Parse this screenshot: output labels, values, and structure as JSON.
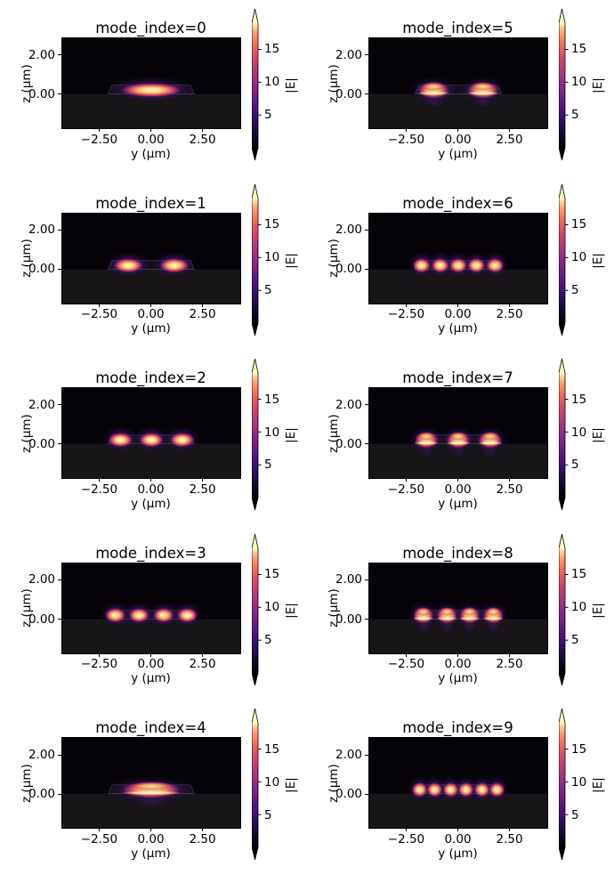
{
  "chart_data": {
    "type": "heatmap_grid",
    "description": "Waveguide optical mode profiles |E| on y-z cross sections, 5 rows x 2 columns, magma colormap",
    "grid_order_row_major": [
      0,
      5,
      1,
      6,
      2,
      7,
      3,
      8,
      4,
      9
    ],
    "shared": {
      "xlabel": "y (µm)",
      "ylabel": "z (µm)",
      "x_range_um": [
        -4.33,
        4.33
      ],
      "z_range_um": [
        -1.76,
        2.87
      ],
      "xtick_values": [
        -2.5,
        0,
        2.5
      ],
      "xtick_labels": [
        "−2.50",
        "0.00",
        "2.50"
      ],
      "ztick_values": [
        2,
        0
      ],
      "ztick_labels": [
        "2.00",
        "0.00"
      ],
      "colorbar": {
        "label": "|E|",
        "tick_values": [
          5,
          10,
          15
        ],
        "tick_labels": [
          "5",
          "10",
          "15"
        ],
        "range": [
          0,
          19
        ],
        "extend": "both",
        "colormap": "magma"
      },
      "substrate_interface_z_um": 0,
      "waveguide": {
        "base_half_width_um": 2.1,
        "top_half_width_um": 1.9,
        "height_um": 0.45
      },
      "colors": {
        "figure_background": "#ffffff",
        "plot_background": "#050308",
        "substrate": "#171518",
        "peak": "#fcfdbf"
      }
    },
    "panels": [
      {
        "mode_index": 0,
        "title": "mode_index=0",
        "family": "TE-like",
        "lobe_centers_um": [
          0
        ],
        "lobe_half_width_um": 1.55,
        "peak_E": 18
      },
      {
        "mode_index": 1,
        "title": "mode_index=1",
        "family": "TE-like",
        "lobe_centers_um": [
          -1.12,
          1.12
        ],
        "lobe_half_width_um": 0.75,
        "peak_E": 18
      },
      {
        "mode_index": 2,
        "title": "mode_index=2",
        "family": "TE-like",
        "lobe_centers_um": [
          -1.5,
          0,
          1.5
        ],
        "lobe_half_width_um": 0.62,
        "peak_E": 18
      },
      {
        "mode_index": 3,
        "title": "mode_index=3",
        "family": "TE-like",
        "lobe_centers_um": [
          -1.75,
          -0.6,
          0.6,
          1.75
        ],
        "lobe_half_width_um": 0.52,
        "peak_E": 18
      },
      {
        "mode_index": 4,
        "title": "mode_index=4",
        "family": "TM-like",
        "lobe_centers_um": [
          0
        ],
        "lobe_half_width_um": 1.5,
        "peak_E": 18
      },
      {
        "mode_index": 5,
        "title": "mode_index=5",
        "family": "TM-like",
        "lobe_centers_um": [
          -1.2,
          1.2
        ],
        "lobe_half_width_um": 0.8,
        "peak_E": 18
      },
      {
        "mode_index": 6,
        "title": "mode_index=6",
        "family": "TE-like",
        "lobe_centers_um": [
          -1.79,
          -0.88,
          0,
          0.88,
          1.79
        ],
        "lobe_half_width_um": 0.45,
        "peak_E": 18
      },
      {
        "mode_index": 7,
        "title": "mode_index=7",
        "family": "TM-like",
        "lobe_centers_um": [
          -1.55,
          0,
          1.55
        ],
        "lobe_half_width_um": 0.6,
        "peak_E": 18
      },
      {
        "mode_index": 8,
        "title": "mode_index=8",
        "family": "TM-like",
        "lobe_centers_um": [
          -1.7,
          -0.55,
          0.55,
          1.7
        ],
        "lobe_half_width_um": 0.52,
        "peak_E": 18
      },
      {
        "mode_index": 9,
        "title": "mode_index=9",
        "family": "TE-like",
        "lobe_centers_um": [
          -1.88,
          -1.15,
          -0.37,
          0.37,
          1.15,
          1.88
        ],
        "lobe_half_width_um": 0.4,
        "peak_E": 18
      }
    ]
  }
}
